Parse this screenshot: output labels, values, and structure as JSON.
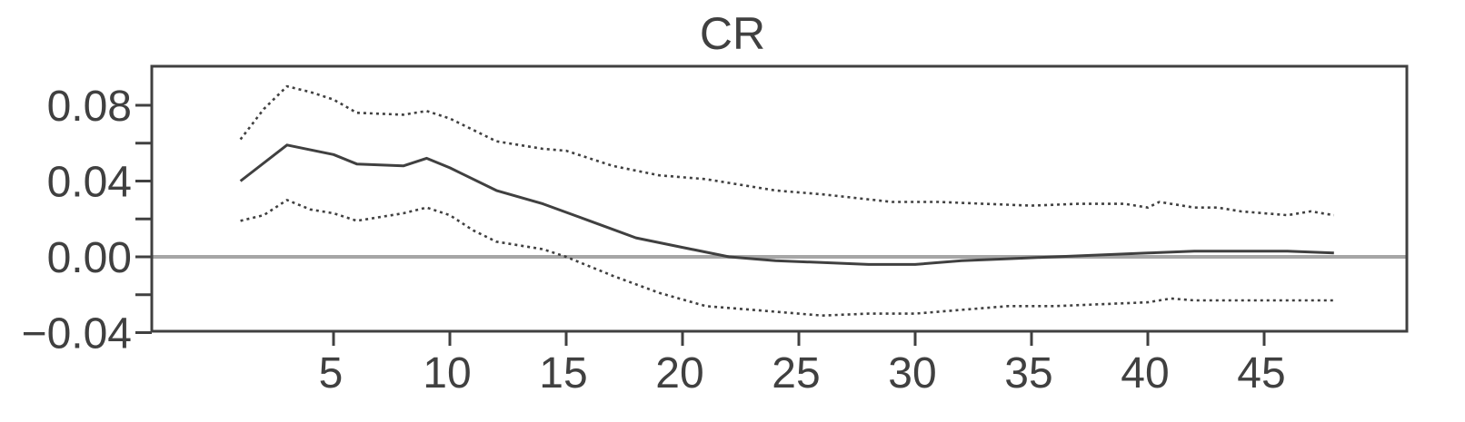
{
  "chart_data": {
    "type": "line",
    "title": "CR",
    "xlabel": "",
    "ylabel": "",
    "xlim": [
      0,
      54
    ],
    "ylim": [
      -0.04,
      0.1
    ],
    "x_ticks": [
      5,
      10,
      15,
      20,
      25,
      30,
      35,
      40,
      45
    ],
    "x_tick_labels": [
      "5",
      "10",
      "15",
      "20",
      "25",
      "30",
      "35",
      "40",
      "45"
    ],
    "y_ticks": [
      -0.04,
      0.0,
      0.04,
      0.08
    ],
    "y_tick_labels": [
      "−0.04",
      "0.00",
      "0.04",
      "0.08"
    ],
    "y_minor_ticks": [
      -0.02,
      0.02,
      0.06
    ],
    "reference_line": 0.0,
    "grid": false,
    "legend": "none",
    "colors": {
      "main": "#404040",
      "band": "#404040",
      "zero": "#a6a6a6",
      "axis": "#404040"
    },
    "series": [
      {
        "style": "solid",
        "x": [
          1,
          3,
          5,
          6,
          8,
          9,
          10,
          12,
          14,
          16,
          18,
          20,
          22,
          24,
          26,
          28,
          30,
          32,
          34,
          36,
          38,
          40,
          42,
          44,
          46,
          48
        ],
        "y": [
          0.04,
          0.059,
          0.054,
          0.049,
          0.048,
          0.052,
          0.047,
          0.035,
          0.028,
          0.019,
          0.01,
          0.005,
          0.0,
          -0.002,
          -0.003,
          -0.004,
          -0.004,
          -0.002,
          -0.001,
          0.0,
          0.001,
          0.002,
          0.003,
          0.003,
          0.003,
          0.002
        ]
      },
      {
        "style": "dotted",
        "x": [
          1,
          2,
          3,
          4,
          5,
          6,
          8,
          9,
          10,
          12,
          14,
          15,
          17,
          19,
          21,
          24,
          26,
          29,
          31,
          33,
          35,
          37,
          39,
          40,
          40.5,
          41,
          42,
          43,
          44,
          46,
          47,
          48
        ],
        "y": [
          0.062,
          0.078,
          0.09,
          0.087,
          0.083,
          0.076,
          0.075,
          0.077,
          0.073,
          0.061,
          0.057,
          0.056,
          0.048,
          0.043,
          0.041,
          0.035,
          0.033,
          0.029,
          0.029,
          0.028,
          0.027,
          0.028,
          0.028,
          0.026,
          0.029,
          0.028,
          0.026,
          0.026,
          0.024,
          0.022,
          0.024,
          0.022
        ]
      },
      {
        "style": "dotted",
        "x": [
          1,
          2,
          3,
          4,
          5,
          6,
          8,
          9,
          10,
          11,
          12,
          14,
          15,
          17,
          19,
          21,
          23,
          25,
          26,
          28,
          30,
          32,
          34,
          36,
          38,
          40,
          41,
          42,
          44,
          46,
          48
        ],
        "y": [
          0.019,
          0.022,
          0.03,
          0.025,
          0.023,
          0.019,
          0.023,
          0.026,
          0.022,
          0.014,
          0.008,
          0.004,
          0.0,
          -0.01,
          -0.019,
          -0.026,
          -0.028,
          -0.03,
          -0.031,
          -0.03,
          -0.03,
          -0.028,
          -0.026,
          -0.026,
          -0.025,
          -0.024,
          -0.022,
          -0.023,
          -0.023,
          -0.023,
          -0.023
        ]
      }
    ]
  }
}
